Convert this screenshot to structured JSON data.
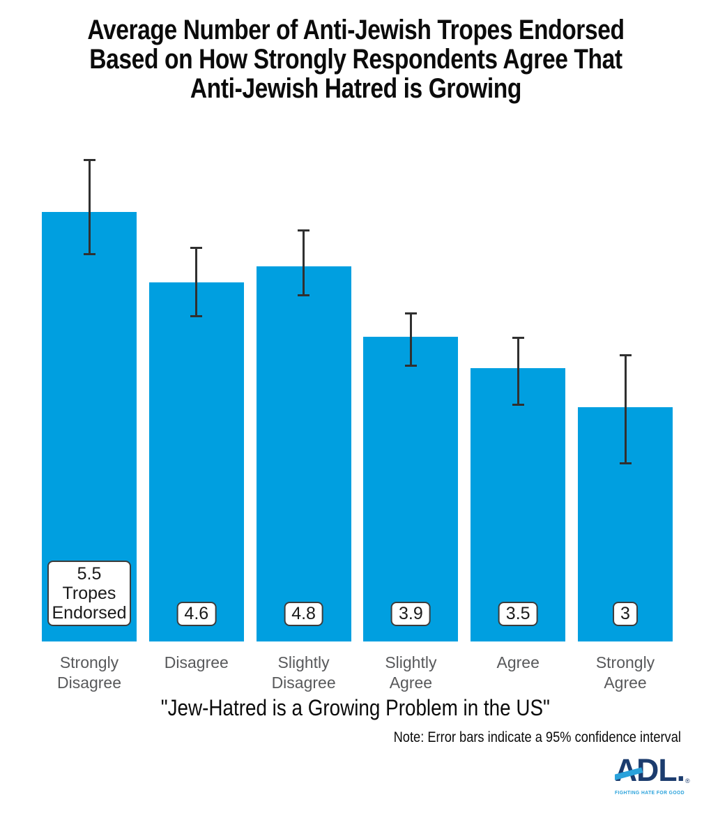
{
  "page": {
    "background": "#ffffff"
  },
  "chart_data": {
    "type": "bar",
    "title": "Average Number of Anti-Jewish Tropes Endorsed Based on How Strongly Respondents Agree That Anti-Jewish Hatred is Growing",
    "title_lines": [
      "Average Number of Anti-Jewish Tropes Endorsed",
      "Based on How Strongly Respondents Agree That",
      "Anti-Jewish Hatred is Growing"
    ],
    "categories": [
      "Strongly Disagree",
      "Disagree",
      "Slightly Disagree",
      "Slightly Agree",
      "Agree",
      "Strongly Agree"
    ],
    "values": [
      5.5,
      4.6,
      4.8,
      3.9,
      3.5,
      3
    ],
    "bar_labels": [
      [
        "5.5",
        "Tropes",
        "Endorsed"
      ],
      [
        "4.6"
      ],
      [
        "4.8"
      ],
      [
        "3.9"
      ],
      [
        "3.5"
      ],
      [
        "3"
      ]
    ],
    "error_low": [
      4.96,
      4.17,
      4.44,
      3.54,
      3.04,
      2.29
    ],
    "error_high": [
      6.16,
      5.04,
      5.26,
      4.2,
      3.88,
      3.66
    ],
    "xlabel": "\"Jew-Hatred is a Growing Problem in the US\"",
    "ylabel": "",
    "ylim": [
      0,
      6.5
    ],
    "grid": false,
    "legend": null,
    "note": "Note: Error bars indicate a 95% confidence interval",
    "bar_color": "#009fe0",
    "error_color": "#303030",
    "label_color": "#58595b"
  },
  "logo": {
    "wordmark": "ADL.",
    "registered_mark": "®",
    "tagline": "FIGHTING HATE FOR GOOD",
    "navy": "#1c3c6e",
    "light_blue": "#2aa2db"
  }
}
